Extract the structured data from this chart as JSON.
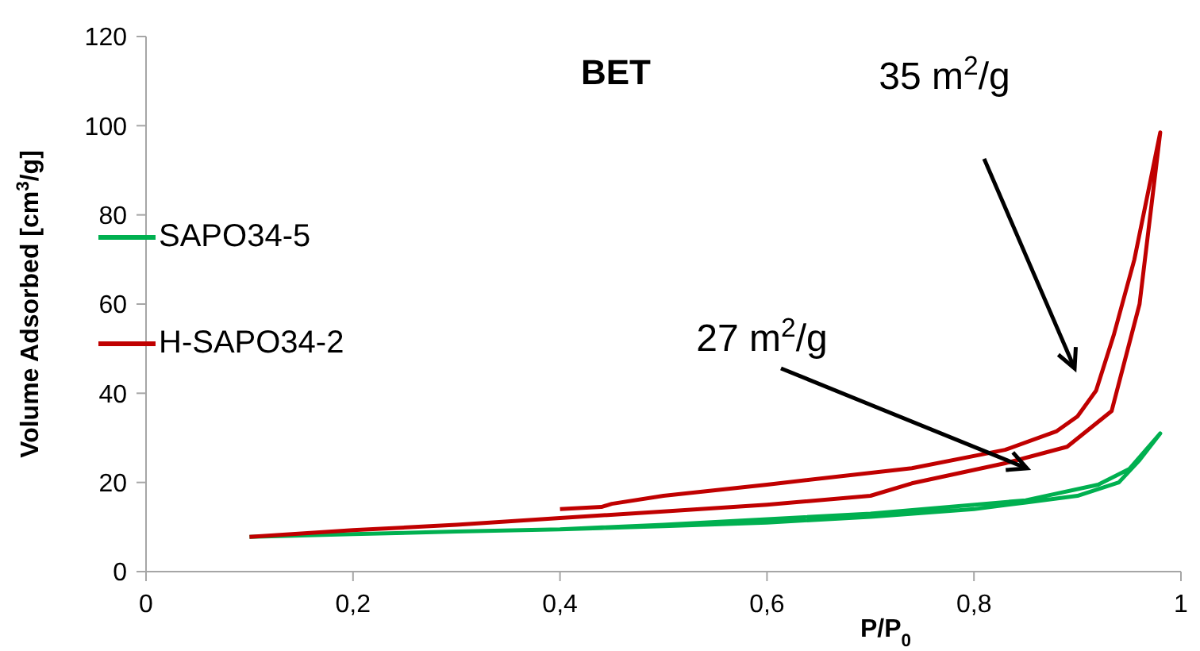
{
  "chart_data": {
    "type": "line",
    "title": "BET",
    "xlabel": "P/P$_{0}$",
    "ylabel": "Volume Adsorbed [cm$^{3}$/g]",
    "xlim": [
      0,
      1
    ],
    "xticks": [
      0,
      {
        "value": 0.2,
        "label": "0,2"
      },
      {
        "value": 0.4,
        "label": "0,4"
      },
      {
        "value": 0.6,
        "label": "0,6"
      },
      {
        "value": 0.8,
        "label": "0,8"
      },
      1
    ],
    "ylim": [
      0,
      120
    ],
    "yticks": [
      0,
      20,
      40,
      60,
      80,
      100,
      120
    ],
    "grid": false,
    "legend": "left",
    "marker": "none",
    "line_style": "solid",
    "series": [
      {
        "name": "SAPO34-5",
        "color": "#00b050",
        "x": [
          0.1,
          0.2,
          0.3,
          0.4,
          0.5,
          0.6,
          0.7,
          0.8,
          0.85,
          0.9,
          0.94,
          0.96,
          0.98,
          0.95,
          0.92,
          0.85,
          0.7,
          0.5,
          0.4
        ],
        "values": [
          7.8,
          8.4,
          9,
          9.5,
          10.2,
          11,
          12.3,
          14,
          15.5,
          17,
          20,
          25,
          31,
          23,
          19.5,
          16,
          13,
          10.5,
          9.5
        ]
      },
      {
        "name": "H-SAPO34-2",
        "color": "#c00000",
        "x": [
          0.1,
          0.2,
          0.3,
          0.4,
          0.5,
          0.6,
          0.7,
          0.74,
          0.83,
          0.89,
          0.933,
          0.96,
          0.98,
          0.955,
          0.935,
          0.918,
          0.9,
          0.88,
          0.83,
          0.74,
          0.6,
          0.5,
          0.45,
          0.44,
          0.4
        ],
        "values": [
          7.8,
          9.3,
          10.5,
          12,
          13.5,
          15,
          17,
          19.8,
          24.3,
          28,
          36,
          60,
          98.5,
          70,
          53,
          40.6,
          34.8,
          31.5,
          27.3,
          23.2,
          19.5,
          17,
          15.2,
          14.5,
          14
        ]
      }
    ],
    "annotations": [
      "35 m$^{2}$/g",
      "27 m$^{2}$/g"
    ]
  }
}
